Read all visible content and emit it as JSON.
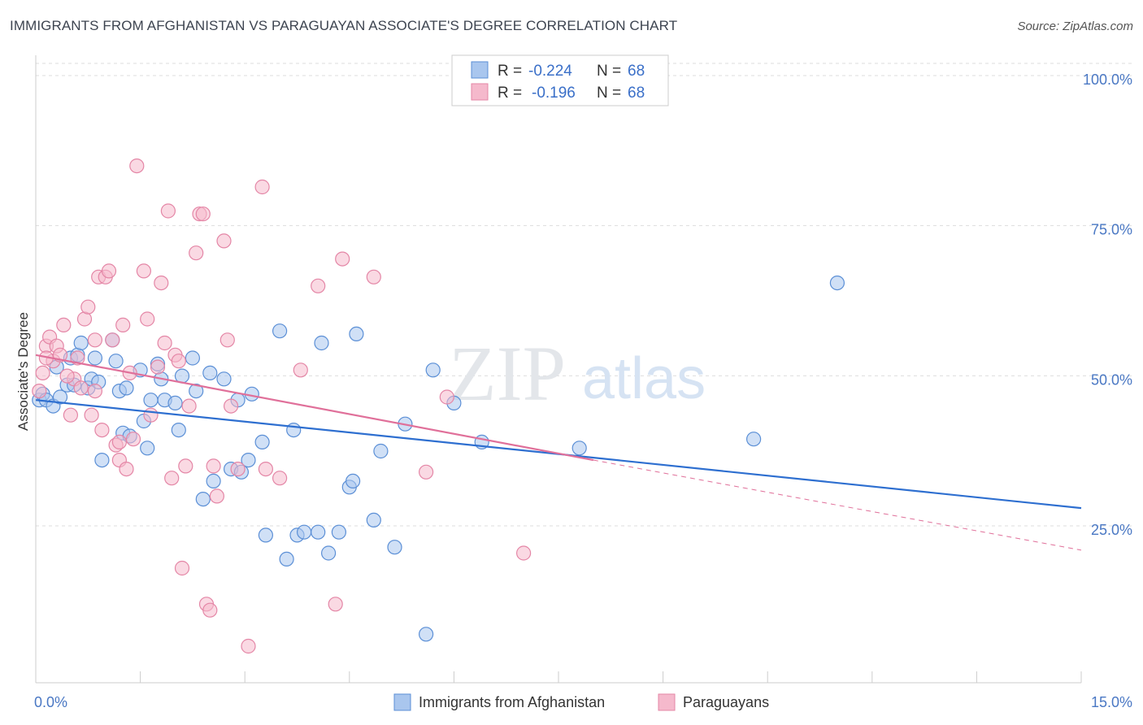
{
  "title": "IMMIGRANTS FROM AFGHANISTAN VS PARAGUAYAN ASSOCIATE'S DEGREE CORRELATION CHART",
  "source": "Source: ZipAtlas.com",
  "watermark": {
    "zip": "ZIP",
    "atlas": "atlas"
  },
  "legend_box": [
    {
      "r_label": "R =",
      "r_value": "-0.224",
      "n_label": "N =",
      "n_value": "68"
    },
    {
      "r_label": "R =",
      "r_value": "-0.196",
      "n_label": "N =",
      "n_value": "68"
    }
  ],
  "colors": {
    "blue_fill": "#a9c6ee",
    "blue_stroke": "#5b8fd6",
    "blue_line": "#2e6fd0",
    "pink_fill": "#f5b9cc",
    "pink_stroke": "#e486a6",
    "pink_line": "#e0709a",
    "grid": "#dddddd",
    "axis": "#cccccc"
  },
  "chart_data": {
    "type": "scatter",
    "title": "IMMIGRANTS FROM AFGHANISTAN VS PARAGUAYAN ASSOCIATE'S DEGREE CORRELATION CHART",
    "xlabel": "",
    "ylabel": "Associate's Degree",
    "xlim": [
      0,
      15
    ],
    "ylim": [
      0,
      100
    ],
    "x_ticks": [
      "0.0%",
      "15.0%"
    ],
    "y_ticks": [
      "100.0%",
      "75.0%",
      "50.0%",
      "25.0%"
    ],
    "y_tick_values": [
      100,
      75,
      50,
      25
    ],
    "grid": true,
    "legend_position": "bottom",
    "series": [
      {
        "name": "Immigrants from Afghanistan",
        "color": "blue",
        "trend": {
          "x": [
            0,
            15
          ],
          "y": [
            46.5,
            28.5
          ]
        },
        "points": [
          [
            0.05,
            46.5
          ],
          [
            0.1,
            47.5
          ],
          [
            0.15,
            46.5
          ],
          [
            0.25,
            45.5
          ],
          [
            0.3,
            52
          ],
          [
            0.35,
            47
          ],
          [
            0.45,
            49
          ],
          [
            0.5,
            53.5
          ],
          [
            0.55,
            49
          ],
          [
            0.6,
            54
          ],
          [
            0.65,
            56
          ],
          [
            0.75,
            48.5
          ],
          [
            0.8,
            50
          ],
          [
            0.85,
            53.5
          ],
          [
            0.9,
            49.5
          ],
          [
            0.95,
            36.5
          ],
          [
            1.1,
            56.5
          ],
          [
            1.15,
            53
          ],
          [
            1.2,
            48
          ],
          [
            1.25,
            41
          ],
          [
            1.3,
            48.5
          ],
          [
            1.35,
            40.5
          ],
          [
            1.5,
            51.5
          ],
          [
            1.55,
            43
          ],
          [
            1.6,
            38.5
          ],
          [
            1.65,
            46.5
          ],
          [
            1.75,
            52.5
          ],
          [
            1.8,
            50
          ],
          [
            1.85,
            46.5
          ],
          [
            2.0,
            46
          ],
          [
            2.05,
            41.5
          ],
          [
            2.1,
            50.5
          ],
          [
            2.25,
            53.5
          ],
          [
            2.3,
            48
          ],
          [
            2.4,
            30
          ],
          [
            2.5,
            51
          ],
          [
            2.55,
            33
          ],
          [
            2.7,
            50
          ],
          [
            2.8,
            35
          ],
          [
            2.9,
            46.5
          ],
          [
            2.95,
            34.5
          ],
          [
            3.05,
            36.5
          ],
          [
            3.1,
            47.5
          ],
          [
            3.25,
            39.5
          ],
          [
            3.3,
            24
          ],
          [
            3.5,
            58
          ],
          [
            3.6,
            20
          ],
          [
            3.7,
            41.5
          ],
          [
            3.75,
            24
          ],
          [
            3.85,
            24.5
          ],
          [
            4.05,
            24.5
          ],
          [
            4.1,
            56
          ],
          [
            4.2,
            21
          ],
          [
            4.35,
            24.5
          ],
          [
            4.5,
            32
          ],
          [
            4.55,
            33
          ],
          [
            4.6,
            57.5
          ],
          [
            4.85,
            26.5
          ],
          [
            4.95,
            38
          ],
          [
            5.15,
            22
          ],
          [
            5.3,
            42.5
          ],
          [
            5.6,
            7.5
          ],
          [
            5.7,
            51.5
          ],
          [
            6.0,
            46
          ],
          [
            6.4,
            39.5
          ],
          [
            7.8,
            38.5
          ],
          [
            10.3,
            40
          ],
          [
            11.5,
            66
          ]
        ]
      },
      {
        "name": "Paraguayans",
        "color": "pink",
        "trend": {
          "x": [
            0,
            8.0
          ],
          "y": [
            54,
            36.5
          ]
        },
        "trend_ext": {
          "x": [
            8.0,
            15
          ],
          "y": [
            36.5,
            21.5
          ]
        },
        "points": [
          [
            0.05,
            48
          ],
          [
            0.1,
            51
          ],
          [
            0.15,
            55.5
          ],
          [
            0.2,
            57
          ],
          [
            0.25,
            53
          ],
          [
            0.3,
            55.5
          ],
          [
            0.35,
            54
          ],
          [
            0.4,
            59
          ],
          [
            0.5,
            44
          ],
          [
            0.55,
            50
          ],
          [
            0.6,
            53.5
          ],
          [
            0.65,
            48.5
          ],
          [
            0.7,
            60
          ],
          [
            0.75,
            62
          ],
          [
            0.8,
            44
          ],
          [
            0.85,
            56.5
          ],
          [
            0.9,
            67
          ],
          [
            0.95,
            41.5
          ],
          [
            1.0,
            67
          ],
          [
            1.05,
            68
          ],
          [
            1.1,
            56.5
          ],
          [
            1.15,
            39
          ],
          [
            1.2,
            36.5
          ],
          [
            1.25,
            59
          ],
          [
            1.3,
            35
          ],
          [
            1.35,
            51
          ],
          [
            1.4,
            40
          ],
          [
            1.45,
            85.5
          ],
          [
            1.55,
            68
          ],
          [
            1.6,
            60
          ],
          [
            1.65,
            44
          ],
          [
            1.8,
            66
          ],
          [
            1.85,
            56
          ],
          [
            1.9,
            78
          ],
          [
            1.95,
            33.5
          ],
          [
            2.0,
            54
          ],
          [
            2.05,
            53
          ],
          [
            2.1,
            18.5
          ],
          [
            2.2,
            45.5
          ],
          [
            2.3,
            71
          ],
          [
            2.35,
            77.5
          ],
          [
            2.4,
            77.5
          ],
          [
            2.45,
            12.5
          ],
          [
            2.5,
            11.5
          ],
          [
            2.55,
            35.5
          ],
          [
            2.6,
            30.5
          ],
          [
            2.7,
            73
          ],
          [
            2.75,
            56.5
          ],
          [
            2.8,
            45.5
          ],
          [
            2.9,
            35
          ],
          [
            3.05,
            5.5
          ],
          [
            3.25,
            82
          ],
          [
            3.3,
            35
          ],
          [
            3.5,
            33.5
          ],
          [
            3.8,
            51.5
          ],
          [
            4.05,
            65.5
          ],
          [
            4.3,
            12.5
          ],
          [
            4.4,
            70
          ],
          [
            4.85,
            67
          ],
          [
            5.6,
            34.5
          ],
          [
            5.9,
            47
          ],
          [
            7.0,
            21
          ],
          [
            0.45,
            50.5
          ],
          [
            0.85,
            48
          ],
          [
            1.75,
            52
          ],
          [
            1.2,
            39.5
          ],
          [
            2.15,
            35.5
          ],
          [
            0.15,
            53.5
          ]
        ]
      }
    ]
  }
}
